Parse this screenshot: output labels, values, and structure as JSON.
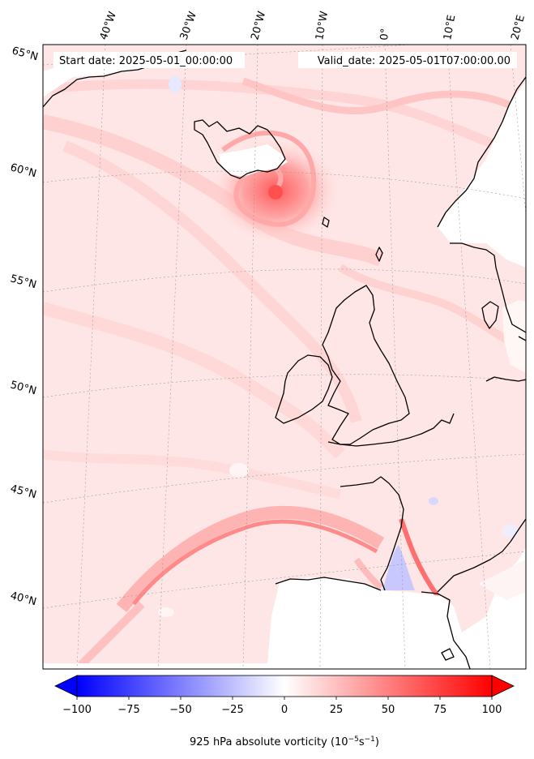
{
  "header": {
    "start_date": "Start date: 2025-05-01_00:00:00",
    "valid_date": "Valid_date: 2025-05-01T07:00:00.00"
  },
  "axes": {
    "lon_labels": [
      "40°W",
      "30°W",
      "20°W",
      "10°W",
      "0°",
      "10°E",
      "20°E"
    ],
    "lat_labels": [
      "65°N",
      "60°N",
      "55°N",
      "50°N",
      "45°N",
      "40°N"
    ]
  },
  "colorbar": {
    "title": "925 hPa absolute vorticity (10",
    "title_exp1": "−5",
    "title_mid": "s",
    "title_exp2": "−1",
    "title_end": ")",
    "ticks": [
      "−100",
      "−75",
      "−50",
      "−25",
      "0",
      "25",
      "50",
      "75",
      "100"
    ],
    "range": [
      -100,
      100
    ],
    "colormap": "bwr",
    "extend": "both",
    "low_color": "#0000ff",
    "mid_color": "#ffffff",
    "high_color": "#ff0000"
  }
}
